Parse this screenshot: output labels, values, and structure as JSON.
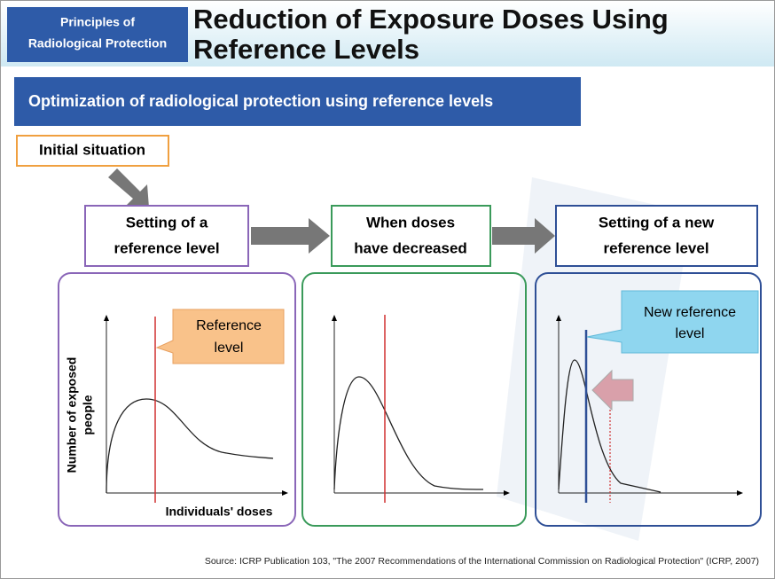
{
  "header": {
    "tag": [
      "Principles of",
      "Radiological Protection"
    ],
    "title": [
      "Reduction of Exposure Doses Using",
      "Reference Levels"
    ]
  },
  "banner": "Optimization of radiological protection using reference levels",
  "initial": "Initial situation",
  "steps": [
    [
      "Setting of a",
      "reference level"
    ],
    [
      "When doses",
      "have decreased"
    ],
    [
      "Setting of a new",
      "reference level"
    ]
  ],
  "axes": {
    "y_label": [
      "Number of exposed",
      "people"
    ],
    "x_label": "Individuals' doses"
  },
  "callouts": {
    "reference": [
      "Reference",
      "level"
    ],
    "new_reference": [
      "New reference",
      "level"
    ]
  },
  "source": "Source: ICRP Publication 103, \"The 2007 Recommendations of the International Commission on Radiological Protection\" (ICRP, 2007)"
}
